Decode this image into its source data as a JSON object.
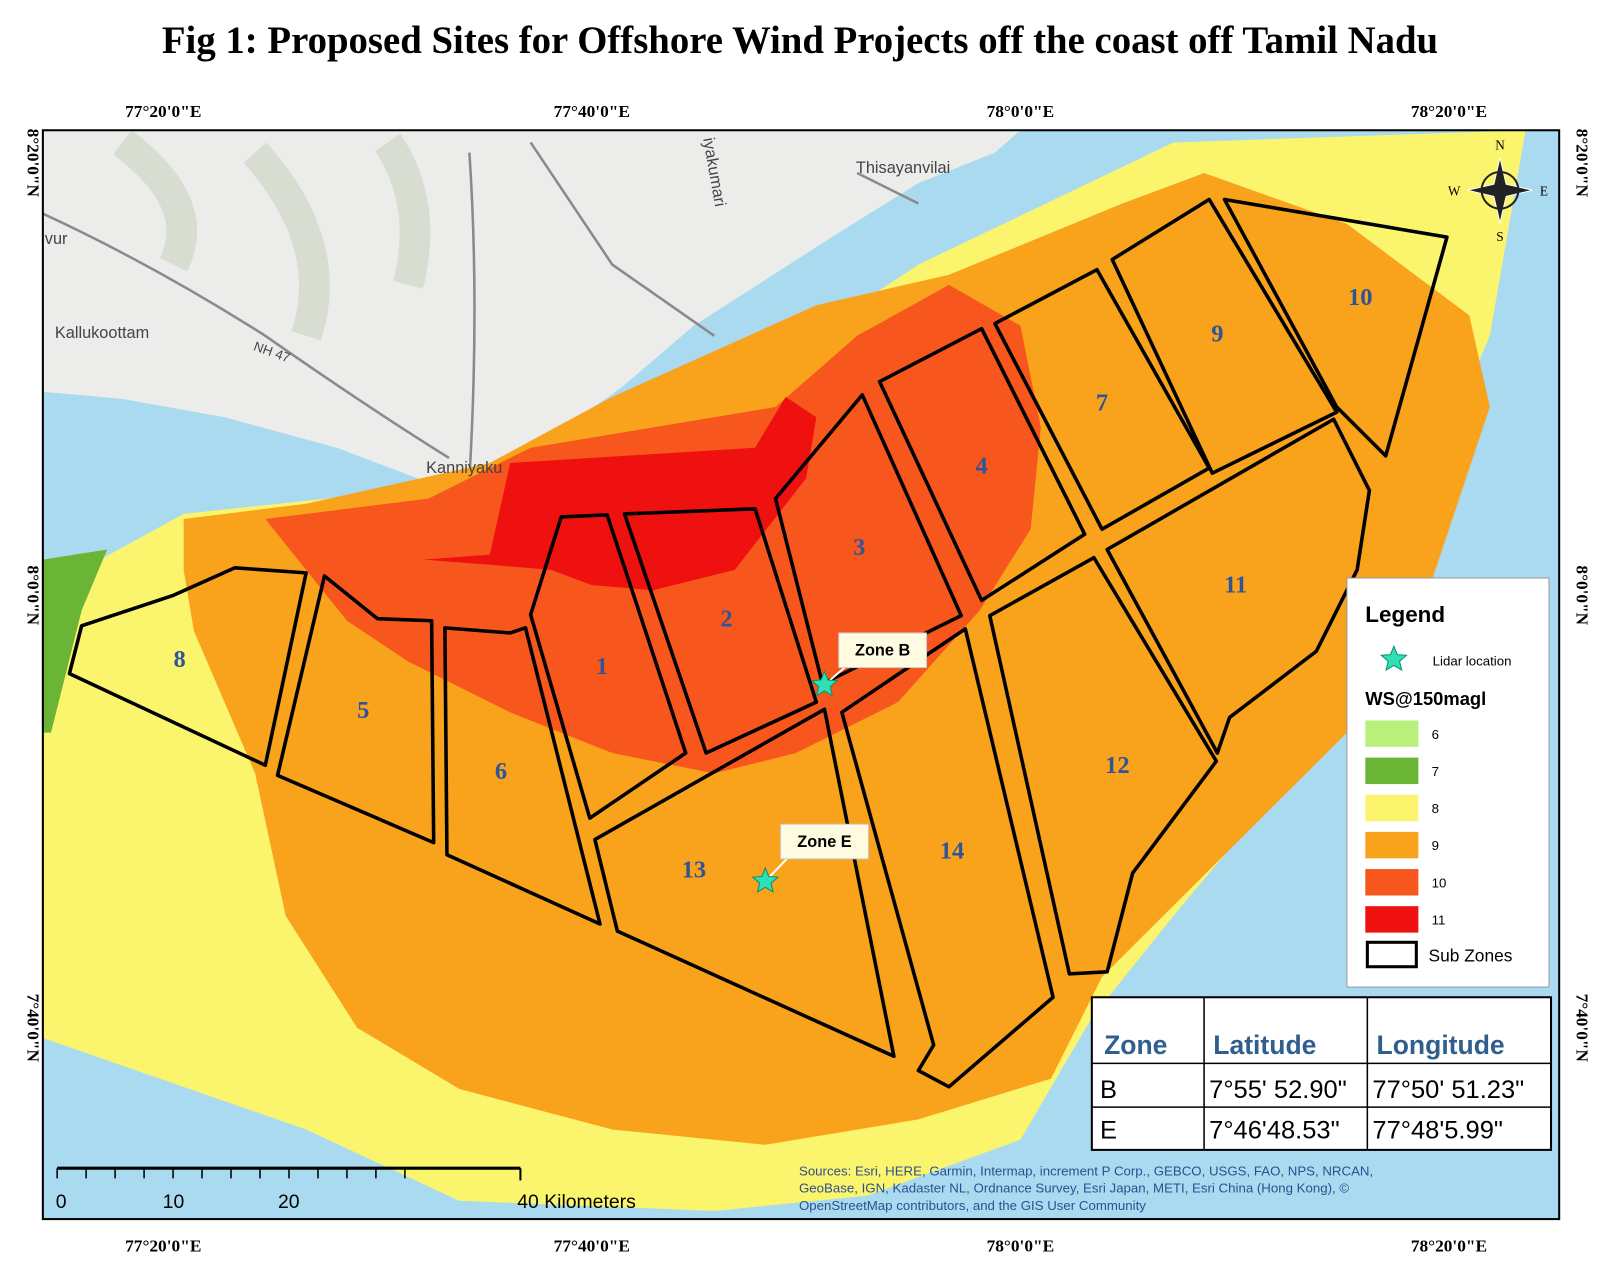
{
  "title": "Fig 1: Proposed Sites for Offshore Wind Projects off the coast off Tamil Nadu",
  "axes": {
    "top": [
      "77°20'0\"E",
      "77°40'0\"E",
      "78°0'0\"E",
      "78°20'0\"E"
    ],
    "bottom": [
      "77°20'0\"E",
      "77°40'0\"E",
      "78°0'0\"E",
      "78°20'0\"E"
    ],
    "left": [
      "8°20'0\"N",
      "8°0'0\"N",
      "7°40'0\"N"
    ],
    "right": [
      "8°20'0\"N",
      "8°0'0\"N",
      "7°40'0\"N"
    ]
  },
  "places": [
    "Thisayanvilai",
    "Kallukoottam",
    "NH 47",
    "Kanniyaku",
    "vur",
    "iyakumari"
  ],
  "compass": [
    "N",
    "S",
    "W",
    "E"
  ],
  "zones": [
    "1",
    "2",
    "3",
    "4",
    "5",
    "6",
    "7",
    "8",
    "9",
    "10",
    "11",
    "12",
    "13",
    "14"
  ],
  "markers": [
    "Zone B",
    "Zone E"
  ],
  "legend": {
    "title": "Legend",
    "lidar": "Lidar location",
    "ws_title": "WS@150magl",
    "classes": [
      {
        "label": "6",
        "color": "#b8f07c"
      },
      {
        "label": "7",
        "color": "#6bb536"
      },
      {
        "label": "8",
        "color": "#fbf56e"
      },
      {
        "label": "9",
        "color": "#f9a21b"
      },
      {
        "label": "10",
        "color": "#f7561c"
      },
      {
        "label": "11",
        "color": "#ef1010"
      }
    ],
    "sub_zones": "Sub Zones"
  },
  "table": {
    "header": [
      "Zone",
      "Latitude",
      "Longitude"
    ],
    "rows": [
      [
        "B",
        "7°55' 52.90\"",
        "77°50' 51.23\""
      ],
      [
        "E",
        "7°46'48.53\"",
        "77°48'5.99\""
      ]
    ]
  },
  "scale_bar": [
    "0",
    "10",
    "20",
    "40 Kilometers"
  ],
  "sources": [
    "Sources: Esri, HERE, Garmin, Intermap, increment P Corp., GEBCO, USGS, FAO, NPS, NRCAN,",
    "GeoBase, IGN, Kadaster NL, Ordnance Survey, Esri Japan, METI, Esri China (Hong Kong), ©",
    "OpenStreetMap contributors, and the GIS User Community"
  ]
}
